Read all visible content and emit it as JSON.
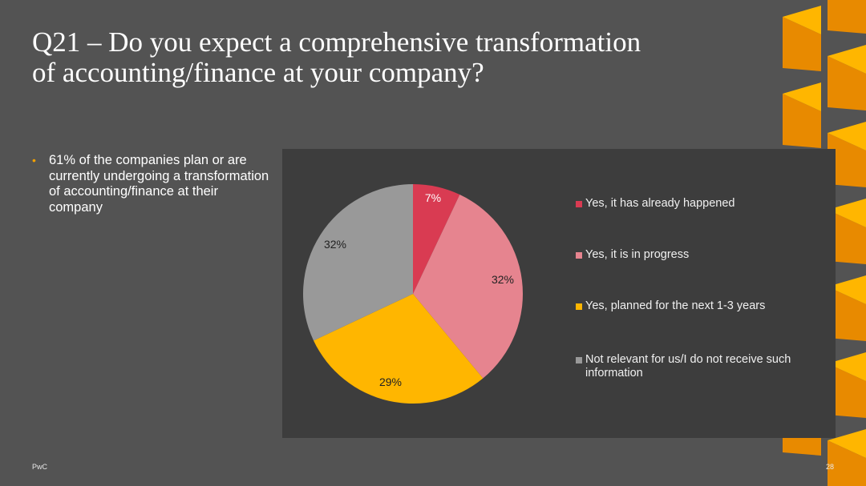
{
  "slide": {
    "title_line1": "Q21 – Do you expect a comprehensive transformation",
    "title_line2": "of accounting/finance at your company?",
    "bullet": "61% of the companies plan or are currently undergoing a transformation of accounting/finance at their company",
    "footer_left": "PwC",
    "page_number": "28"
  },
  "colors": {
    "background": "#535353",
    "chart_panel": "#3d3d3d",
    "accent": "#f2a000"
  },
  "chart_data": {
    "type": "pie",
    "title": "",
    "legend_position": "right",
    "slices": [
      {
        "label": "Yes, it has already happened",
        "value": 7,
        "value_label": "7%",
        "color": "#d93b52",
        "label_color": "#ffffff"
      },
      {
        "label": "Yes, it is in progress",
        "value": 32,
        "value_label": "32%",
        "color": "#e6848f",
        "label_color": "#222222"
      },
      {
        "label": "Yes, planned for the next 1-3 years",
        "value": 29,
        "value_label": "29%",
        "color": "#ffb600",
        "label_color": "#222222"
      },
      {
        "label": "Not relevant for us/I do not receive such information",
        "value": 32,
        "value_label": "32%",
        "color": "#999999",
        "label_color": "#222222"
      }
    ]
  }
}
